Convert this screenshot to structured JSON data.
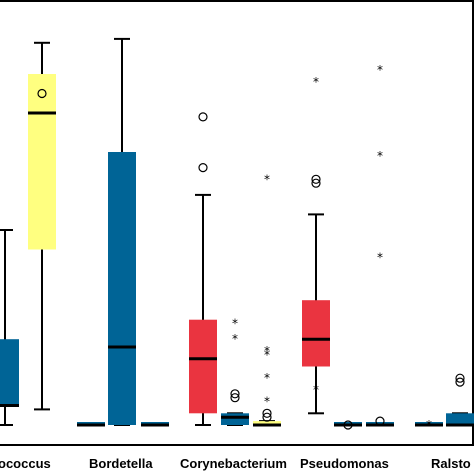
{
  "chart_data": {
    "type": "boxplot",
    "categories": [
      "...ococcus",
      "Bordetella",
      "Corynebacterium",
      "Pseudomonas",
      "Ralsto..."
    ],
    "category_labels": [
      "ococcus",
      "Bordetella",
      "Corynebacterium",
      "Pseudomonas",
      "Ralsto"
    ],
    "grid": false,
    "legend": "none",
    "colors": {
      "blue": "#006496",
      "yellow": "#ffff80",
      "red": "#ea3440"
    },
    "boxes": [
      {
        "name": "ococcus-a",
        "cx": 5,
        "color": "blue",
        "q1": 0.05,
        "median": 0.05,
        "q3": 0.22,
        "whisker_low": 0.0,
        "whisker_high": 0.5,
        "circles": [],
        "stars": []
      },
      {
        "name": "ococcus-b",
        "cx": 42,
        "color": "yellow",
        "q1": 0.45,
        "median": 0.8,
        "q3": 0.9,
        "whisker_low": 0.04,
        "whisker_high": 0.98,
        "circles": [
          0.85
        ],
        "stars": []
      },
      {
        "name": "bordetella-a",
        "cx": 91,
        "color": "blue",
        "q1": 0.0,
        "median": 0.0,
        "q3": 0.0,
        "whisker_low": 0.0,
        "whisker_high": 0.0,
        "circles": [],
        "stars": []
      },
      {
        "name": "bordetella-b",
        "cx": 122,
        "color": "blue",
        "q1": 0.0,
        "median": 0.2,
        "q3": 0.7,
        "whisker_low": 0.0,
        "whisker_high": 0.99,
        "circles": [],
        "stars": []
      },
      {
        "name": "bordetella-c",
        "cx": 155,
        "color": "blue",
        "q1": 0.0,
        "median": 0.0,
        "q3": 0.0,
        "whisker_low": 0.0,
        "whisker_high": 0.0,
        "circles": [],
        "stars": []
      },
      {
        "name": "coryne-a",
        "cx": 203,
        "color": "red",
        "q1": 0.03,
        "median": 0.17,
        "q3": 0.27,
        "whisker_low": 0.0,
        "whisker_high": 0.59,
        "circles": [
          0.66,
          0.79
        ],
        "stars": []
      },
      {
        "name": "coryne-b",
        "cx": 235,
        "color": "blue",
        "q1": 0.0,
        "median": 0.02,
        "q3": 0.03,
        "whisker_low": 0.0,
        "whisker_high": 0.03,
        "circles": [
          0.07,
          0.08
        ],
        "stars": [
          0.22,
          0.26
        ]
      },
      {
        "name": "coryne-c",
        "cx": 267,
        "color": "yellow",
        "q1": 0.0,
        "median": 0.0,
        "q3": 0.01,
        "whisker_low": 0.0,
        "whisker_high": 0.01,
        "circles": [
          0.02,
          0.03
        ],
        "stars": [
          0.06,
          0.12,
          0.18,
          0.19,
          0.63
        ]
      },
      {
        "name": "pseudo-a",
        "cx": 316,
        "color": "red",
        "q1": 0.15,
        "median": 0.22,
        "q3": 0.32,
        "whisker_low": 0.03,
        "whisker_high": 0.54,
        "circles": [
          0.62,
          0.63
        ],
        "stars": [
          0.09,
          0.88
        ]
      },
      {
        "name": "pseudo-b",
        "cx": 348,
        "color": "blue",
        "q1": 0.0,
        "median": 0.0,
        "q3": 0.0,
        "whisker_low": 0.0,
        "whisker_high": 0.0,
        "circles": [
          0.0
        ],
        "stars": []
      },
      {
        "name": "pseudo-c",
        "cx": 380,
        "color": "blue",
        "q1": 0.0,
        "median": 0.0,
        "q3": 0.005,
        "whisker_low": 0.0,
        "whisker_high": 0.005,
        "circles": [
          0.01
        ],
        "stars": [
          0.43,
          0.69,
          0.91
        ]
      },
      {
        "name": "ralsto-a",
        "cx": 429,
        "color": "blue",
        "q1": 0.0,
        "median": 0.0,
        "q3": 0.0,
        "whisker_low": 0.0,
        "whisker_high": 0.0,
        "circles": [],
        "stars": [
          0.0
        ]
      },
      {
        "name": "ralsto-b",
        "cx": 460,
        "color": "blue",
        "q1": 0.0,
        "median": 0.0,
        "q3": 0.03,
        "whisker_low": 0.0,
        "whisker_high": 0.03,
        "circles": [
          0.11,
          0.12
        ],
        "stars": []
      }
    ]
  }
}
